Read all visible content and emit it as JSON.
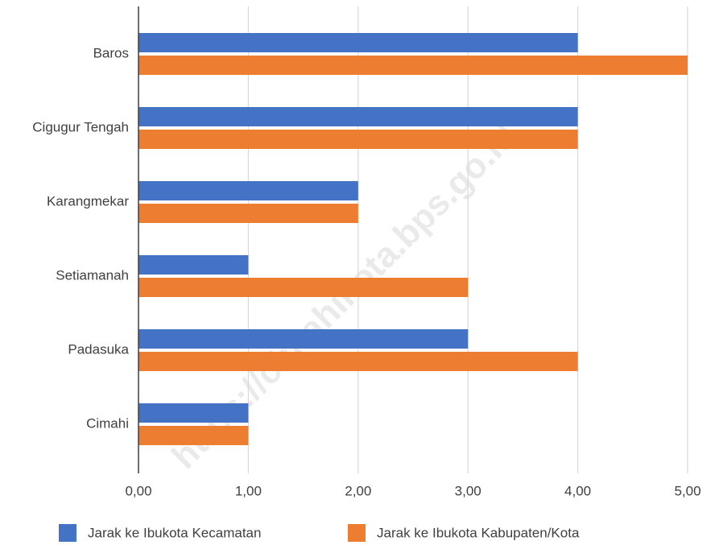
{
  "chart_data": {
    "type": "bar",
    "orientation": "horizontal",
    "categories": [
      "Baros",
      "Cigugur Tengah",
      "Karangmekar",
      "Setiamanah",
      "Padasuka",
      "Cimahi"
    ],
    "series": [
      {
        "name": "Jarak ke Ibukota Kecamatan",
        "color": "#4472c4",
        "values": [
          4,
          4,
          2,
          1,
          3,
          1
        ]
      },
      {
        "name": "Jarak ke Ibukota Kabupaten/Kota",
        "color": "#ed7d31",
        "values": [
          5,
          4,
          2,
          3,
          4,
          1
        ]
      }
    ],
    "xlim": [
      0,
      5
    ],
    "xticks": [
      {
        "value": 0,
        "label": "0,00"
      },
      {
        "value": 1,
        "label": "1,00"
      },
      {
        "value": 2,
        "label": "2,00"
      },
      {
        "value": 3,
        "label": "3,00"
      },
      {
        "value": 4,
        "label": "4,00"
      },
      {
        "value": 5,
        "label": "5,00"
      }
    ],
    "grid": true,
    "legend": "bottom",
    "watermark": "https://cimahikota.bps.go.id"
  }
}
